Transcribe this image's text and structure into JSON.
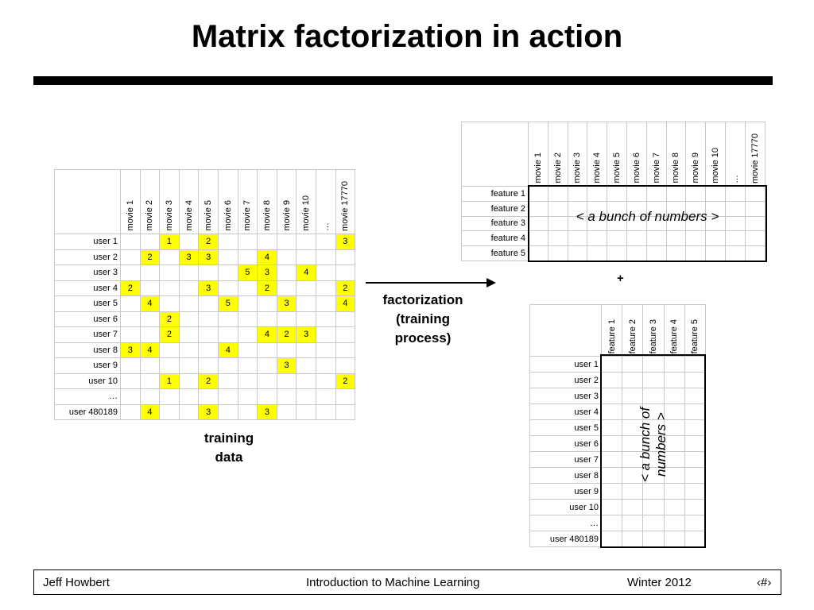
{
  "title": "Matrix factorization in action",
  "movies": [
    "movie 1",
    "movie 2",
    "movie 3",
    "movie 4",
    "movie 5",
    "movie 6",
    "movie 7",
    "movie 8",
    "movie 9",
    "movie 10",
    "…",
    "movie 17770"
  ],
  "users": [
    "user 1",
    "user 2",
    "user 3",
    "user 4",
    "user 5",
    "user 6",
    "user 7",
    "user 8",
    "user 9",
    "user 10",
    "…",
    "user 480189"
  ],
  "features": [
    "feature 1",
    "feature 2",
    "feature 3",
    "feature 4",
    "feature 5"
  ],
  "ratings": [
    [
      "",
      "",
      "1",
      "",
      "2",
      "",
      "",
      "",
      "",
      "",
      "",
      "3"
    ],
    [
      "",
      "2",
      "",
      "3",
      "3",
      "",
      "",
      "4",
      "",
      "",
      "",
      ""
    ],
    [
      "",
      "",
      "",
      "",
      "",
      "",
      "5",
      "3",
      "",
      "4",
      "",
      ""
    ],
    [
      "2",
      "",
      "",
      "",
      "3",
      "",
      "",
      "2",
      "",
      "",
      "",
      "2"
    ],
    [
      "",
      "4",
      "",
      "",
      "",
      "5",
      "",
      "",
      "3",
      "",
      "",
      "4"
    ],
    [
      "",
      "",
      "2",
      "",
      "",
      "",
      "",
      "",
      "",
      "",
      "",
      ""
    ],
    [
      "",
      "",
      "2",
      "",
      "",
      "",
      "",
      "4",
      "2",
      "3",
      "",
      ""
    ],
    [
      "3",
      "4",
      "",
      "",
      "",
      "4",
      "",
      "",
      "",
      "",
      "",
      ""
    ],
    [
      "",
      "",
      "",
      "",
      "",
      "",
      "",
      "",
      "3",
      "",
      "",
      ""
    ],
    [
      "",
      "",
      "1",
      "",
      "2",
      "",
      "",
      "",
      "",
      "",
      "",
      "2"
    ],
    [
      "",
      "",
      "",
      "",
      "",
      "",
      "",
      "",
      "",
      "",
      "",
      ""
    ],
    [
      "",
      "4",
      "",
      "",
      "3",
      "",
      "",
      "3",
      "",
      "",
      "",
      ""
    ]
  ],
  "movie_features_note": "< a bunch of numbers >",
  "user_features_note": "< a bunch of numbers >",
  "factorization_label": "factorization (training process)",
  "plus_sign": "+",
  "training_label": "training data",
  "footer": {
    "author": "Jeff Howbert",
    "course": "Introduction to Machine Learning",
    "term": "Winter 2012",
    "page": "‹#›"
  }
}
